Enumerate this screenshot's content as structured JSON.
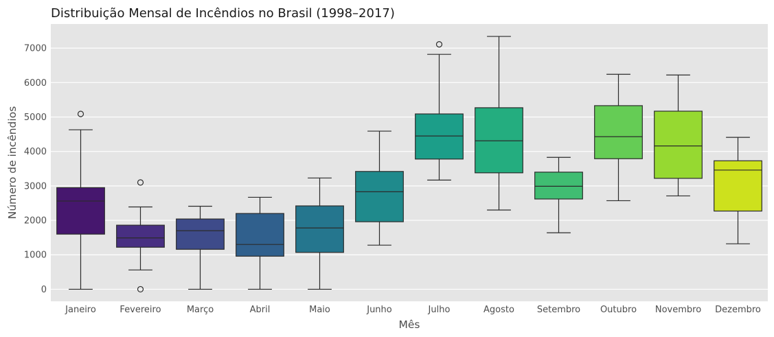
{
  "chart_data": {
    "type": "box",
    "title": "Distribuição Mensal de Incêndios no Brasil (1998–2017)",
    "xlabel": "Mês",
    "ylabel": "Número de incêndios",
    "ylim": [
      -350,
      7700
    ],
    "yticks": [
      0,
      1000,
      2000,
      3000,
      4000,
      5000,
      6000,
      7000
    ],
    "grid": true,
    "legend": "none",
    "categories": [
      "Janeiro",
      "Fevereiro",
      "Março",
      "Abril",
      "Maio",
      "Junho",
      "Julho",
      "Agosto",
      "Setembro",
      "Outubro",
      "Novembro",
      "Dezembro"
    ],
    "colors": [
      "#46176e",
      "#482f82",
      "#3e4b8a",
      "#30608d",
      "#25768e",
      "#1f8a8c",
      "#1c9e89",
      "#24ad7f",
      "#40bd72",
      "#65cc55",
      "#96d931",
      "#cde11d"
    ],
    "boxes": [
      {
        "whisker_low": 0,
        "q1": 1600,
        "median": 2560,
        "q3": 2950,
        "whisker_high": 4630,
        "outliers": [
          5090
        ]
      },
      {
        "whisker_low": 560,
        "q1": 1220,
        "median": 1490,
        "q3": 1860,
        "whisker_high": 2390,
        "outliers": [
          3100,
          0
        ]
      },
      {
        "whisker_low": 0,
        "q1": 1160,
        "median": 1700,
        "q3": 2040,
        "whisker_high": 2410,
        "outliers": []
      },
      {
        "whisker_low": 0,
        "q1": 960,
        "median": 1300,
        "q3": 2200,
        "whisker_high": 2670,
        "outliers": []
      },
      {
        "whisker_low": 0,
        "q1": 1070,
        "median": 1780,
        "q3": 2420,
        "whisker_high": 3230,
        "outliers": []
      },
      {
        "whisker_low": 1280,
        "q1": 1960,
        "median": 2830,
        "q3": 3420,
        "whisker_high": 4590,
        "outliers": []
      },
      {
        "whisker_low": 3170,
        "q1": 3780,
        "median": 4450,
        "q3": 5090,
        "whisker_high": 6820,
        "outliers": [
          7110
        ]
      },
      {
        "whisker_low": 2300,
        "q1": 3380,
        "median": 4310,
        "q3": 5270,
        "whisker_high": 7340,
        "outliers": []
      },
      {
        "whisker_low": 1640,
        "q1": 2620,
        "median": 2990,
        "q3": 3400,
        "whisker_high": 3830,
        "outliers": []
      },
      {
        "whisker_low": 2570,
        "q1": 3790,
        "median": 4430,
        "q3": 5330,
        "whisker_high": 6240,
        "outliers": []
      },
      {
        "whisker_low": 2710,
        "q1": 3220,
        "median": 4160,
        "q3": 5170,
        "whisker_high": 6220,
        "outliers": []
      },
      {
        "whisker_low": 1320,
        "q1": 2270,
        "median": 3460,
        "q3": 3730,
        "whisker_high": 4410,
        "outliers": []
      }
    ]
  }
}
